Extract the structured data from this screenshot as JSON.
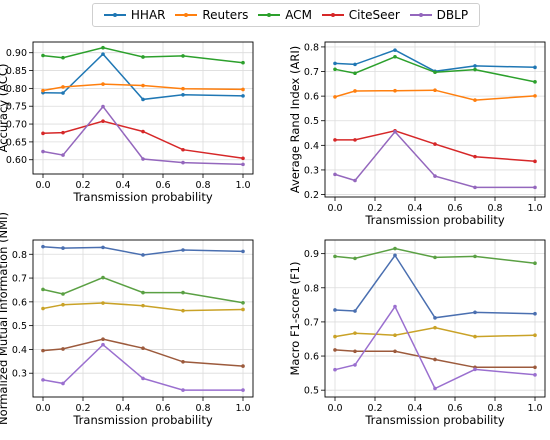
{
  "legend": [
    {
      "name": "HHAR",
      "color": "#1f77b4"
    },
    {
      "name": "Reuters",
      "color": "#ff7f0e"
    },
    {
      "name": "ACM",
      "color": "#2ca02c"
    },
    {
      "name": "CiteSeer",
      "color": "#d62728"
    },
    {
      "name": "DBLP",
      "color": "#9467bd"
    }
  ],
  "chart_data": [
    {
      "type": "line",
      "xlabel": "Transmission probability",
      "ylabel": "Accuracy (ACC)",
      "x": [
        0.0,
        0.1,
        0.3,
        0.5,
        0.7,
        1.0
      ],
      "xlim": [
        -0.05,
        1.05
      ],
      "ylim": [
        0.56,
        0.93
      ],
      "xticks": [
        "0.0",
        "0.2",
        "0.4",
        "0.6",
        "0.8",
        "1.0"
      ],
      "yticks": [
        "0.60",
        "0.65",
        "0.70",
        "0.75",
        "0.80",
        "0.85",
        "0.90"
      ],
      "grid": true,
      "series": [
        {
          "name": "HHAR",
          "color": "#1f77b4",
          "values": [
            0.788,
            0.787,
            0.896,
            0.769,
            0.782,
            0.779
          ]
        },
        {
          "name": "Reuters",
          "color": "#ff7f0e",
          "values": [
            0.794,
            0.804,
            0.812,
            0.808,
            0.799,
            0.797
          ]
        },
        {
          "name": "ACM",
          "color": "#2ca02c",
          "values": [
            0.892,
            0.886,
            0.914,
            0.888,
            0.891,
            0.872
          ]
        },
        {
          "name": "CiteSeer",
          "color": "#d62728",
          "values": [
            0.674,
            0.676,
            0.708,
            0.679,
            0.628,
            0.604
          ]
        },
        {
          "name": "DBLP",
          "color": "#9467bd",
          "values": [
            0.623,
            0.613,
            0.749,
            0.602,
            0.592,
            0.587
          ]
        }
      ]
    },
    {
      "type": "line",
      "xlabel": "Transmission probability",
      "ylabel": "Average Rand Index (ARI)",
      "x": [
        0.0,
        0.1,
        0.3,
        0.5,
        0.7,
        1.0
      ],
      "xlim": [
        -0.05,
        1.05
      ],
      "ylim": [
        0.19,
        0.82
      ],
      "xticks": [
        "0.0",
        "0.2",
        "0.4",
        "0.6",
        "0.8",
        "1.0"
      ],
      "yticks": [
        "0.2",
        "0.3",
        "0.4",
        "0.5",
        "0.6",
        "0.7",
        "0.8"
      ],
      "grid": true,
      "series": [
        {
          "name": "HHAR",
          "color": "#1f77b4",
          "values": [
            0.733,
            0.729,
            0.787,
            0.701,
            0.723,
            0.717
          ]
        },
        {
          "name": "Reuters",
          "color": "#ff7f0e",
          "values": [
            0.597,
            0.621,
            0.622,
            0.624,
            0.584,
            0.601
          ]
        },
        {
          "name": "ACM",
          "color": "#2ca02c",
          "values": [
            0.709,
            0.693,
            0.76,
            0.697,
            0.708,
            0.658
          ]
        },
        {
          "name": "CiteSeer",
          "color": "#d62728",
          "values": [
            0.422,
            0.422,
            0.459,
            0.405,
            0.354,
            0.335
          ]
        },
        {
          "name": "DBLP",
          "color": "#9467bd",
          "values": [
            0.282,
            0.257,
            0.455,
            0.275,
            0.229,
            0.229
          ]
        }
      ]
    },
    {
      "type": "line",
      "xlabel": "Transmission probability",
      "ylabel": "Normalized Mutual Information (NMI)",
      "x": [
        0.0,
        0.1,
        0.3,
        0.5,
        0.7,
        1.0
      ],
      "xlim": [
        -0.05,
        1.05
      ],
      "ylim": [
        0.2,
        0.86
      ],
      "xticks": [
        "0.0",
        "0.2",
        "0.4",
        "0.6",
        "0.8",
        "1.0"
      ],
      "yticks": [
        "0.3",
        "0.4",
        "0.5",
        "0.6",
        "0.7",
        "0.8"
      ],
      "grid": true,
      "series": [
        {
          "name": "HHAR",
          "color": "#4a6fb0",
          "values": [
            0.832,
            0.826,
            0.829,
            0.797,
            0.818,
            0.812
          ]
        },
        {
          "name": "Reuters",
          "color": "#c9a227",
          "values": [
            0.572,
            0.588,
            0.595,
            0.584,
            0.563,
            0.568
          ]
        },
        {
          "name": "ACM",
          "color": "#5aa043",
          "values": [
            0.652,
            0.633,
            0.702,
            0.639,
            0.639,
            0.596
          ]
        },
        {
          "name": "CiteSeer",
          "color": "#9c5a3c",
          "values": [
            0.395,
            0.402,
            0.443,
            0.405,
            0.348,
            0.33
          ]
        },
        {
          "name": "DBLP",
          "color": "#9a6fcf",
          "values": [
            0.272,
            0.257,
            0.42,
            0.278,
            0.229,
            0.229
          ]
        }
      ]
    },
    {
      "type": "line",
      "xlabel": "Transmission probability",
      "ylabel": "Macro F1-score (F1)",
      "x": [
        0.0,
        0.1,
        0.3,
        0.5,
        0.7,
        1.0
      ],
      "xlim": [
        -0.05,
        1.05
      ],
      "ylim": [
        0.48,
        0.94
      ],
      "xticks": [
        "0.0",
        "0.2",
        "0.4",
        "0.6",
        "0.8",
        "1.0"
      ],
      "yticks": [
        "0.5",
        "0.6",
        "0.7",
        "0.8",
        "0.9"
      ],
      "grid": true,
      "series": [
        {
          "name": "HHAR",
          "color": "#4a6fb0",
          "values": [
            0.735,
            0.732,
            0.895,
            0.712,
            0.728,
            0.724
          ]
        },
        {
          "name": "Reuters",
          "color": "#c9a227",
          "values": [
            0.657,
            0.667,
            0.661,
            0.683,
            0.657,
            0.661
          ]
        },
        {
          "name": "ACM",
          "color": "#5aa043",
          "values": [
            0.892,
            0.886,
            0.915,
            0.889,
            0.892,
            0.872
          ]
        },
        {
          "name": "CiteSeer",
          "color": "#9c5a3c",
          "values": [
            0.618,
            0.614,
            0.614,
            0.59,
            0.567,
            0.567
          ]
        },
        {
          "name": "DBLP",
          "color": "#9a6fcf",
          "values": [
            0.56,
            0.574,
            0.745,
            0.505,
            0.561,
            0.545
          ]
        }
      ]
    }
  ]
}
